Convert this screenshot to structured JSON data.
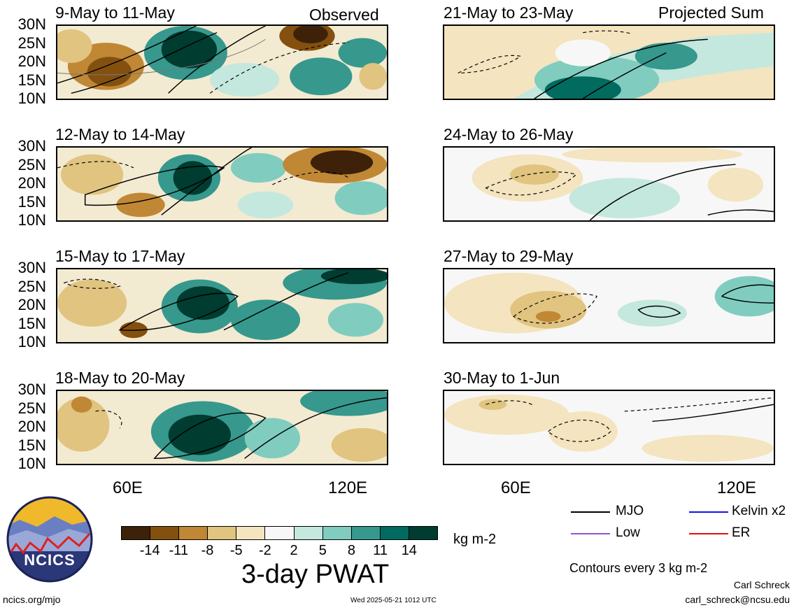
{
  "panels_left": [
    {
      "title": "9-May to 11-May",
      "tag": "Observed"
    },
    {
      "title": "12-May to 14-May",
      "tag": ""
    },
    {
      "title": "15-May to 17-May",
      "tag": ""
    },
    {
      "title": "18-May to 20-May",
      "tag": ""
    }
  ],
  "panels_right": [
    {
      "title": "21-May to 23-May",
      "tag": "Projected Sum"
    },
    {
      "title": "24-May to 26-May",
      "tag": ""
    },
    {
      "title": "27-May to 29-May",
      "tag": ""
    },
    {
      "title": "30-May to 1-Jun",
      "tag": ""
    }
  ],
  "lat_labels": [
    "30N",
    "25N",
    "20N",
    "15N",
    "10N"
  ],
  "lon_labels": [
    "60E",
    "120E"
  ],
  "colorbar": {
    "colors": [
      "#3d2209",
      "#84500f",
      "#c08735",
      "#e0c47f",
      "#f4e4bf",
      "#f7f7f7",
      "#c4e8de",
      "#80cdbf",
      "#37988d",
      "#016b5f",
      "#003c30"
    ],
    "ticks": [
      "-14",
      "-11",
      "-8",
      "-5",
      "-2",
      "2",
      "5",
      "8",
      "11",
      "14"
    ],
    "units": "kg m-2",
    "title": "3-day PWAT"
  },
  "legend": [
    {
      "label": "MJO",
      "color": "#000000"
    },
    {
      "label": "Kelvin x2",
      "color": "#1010ee"
    },
    {
      "label": "Low",
      "color": "#9a4fd0"
    },
    {
      "label": "ER",
      "color": "#e01010"
    }
  ],
  "contour_note": "Contours every 3 kg m-2",
  "logo_text": "NCICS",
  "footer": {
    "url": "ncics.org/mjo",
    "timestamp": "Wed 2025-05-21 1012 UTC",
    "author": "Carl Schreck",
    "email": "carl_schreck@ncsu.edu"
  }
}
